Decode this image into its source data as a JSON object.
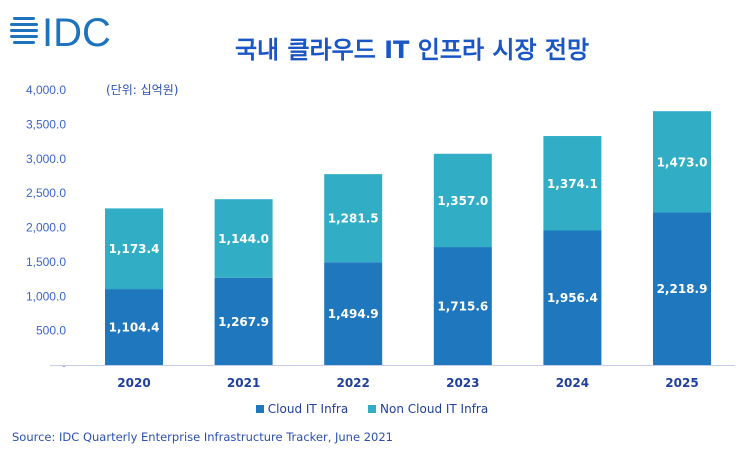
{
  "logo": {
    "text": "IDC",
    "icon": "globe-stripes-icon",
    "color": "#1e73be"
  },
  "chart_data": {
    "type": "bar",
    "stacked": true,
    "title": "국내 클라우드 IT 인프라 시장 전망",
    "unit_label": "(단위: 십억원)",
    "xlabel": "",
    "ylabel": "",
    "categories": [
      "2020",
      "2021",
      "2022",
      "2023",
      "2024",
      "2025"
    ],
    "series": [
      {
        "name": "Cloud IT Infra",
        "color": "#1f77be",
        "values": [
          1104.4,
          1267.9,
          1494.9,
          1715.6,
          1956.4,
          2218.9
        ],
        "labels": [
          "1,104.4",
          "1,267.9",
          "1,494.9",
          "1,715.6",
          "1,956.4",
          "2,218.9"
        ]
      },
      {
        "name": "Non Cloud IT Infra",
        "color": "#31adc6",
        "values": [
          1173.4,
          1144.0,
          1281.5,
          1357.0,
          1374.1,
          1473.0
        ],
        "labels": [
          "1,173.4",
          "1,144.0",
          "1,281.5",
          "1,357.0",
          "1,374.1",
          "1,473.0"
        ]
      }
    ],
    "ylim": [
      0,
      4000
    ],
    "yticks": [
      0,
      500,
      1000,
      1500,
      2000,
      2500,
      3000,
      3500,
      4000
    ],
    "ytick_labels": [
      "-",
      "500.0",
      "1,000.0",
      "1,500.0",
      "2,000.0",
      "2,500.0",
      "3,000.0",
      "3,500.0",
      "4,000.0"
    ],
    "grid": false,
    "legend": "bottom-center",
    "source": "Source: IDC Quarterly Enterprise Infrastructure Tracker, June 2021"
  }
}
